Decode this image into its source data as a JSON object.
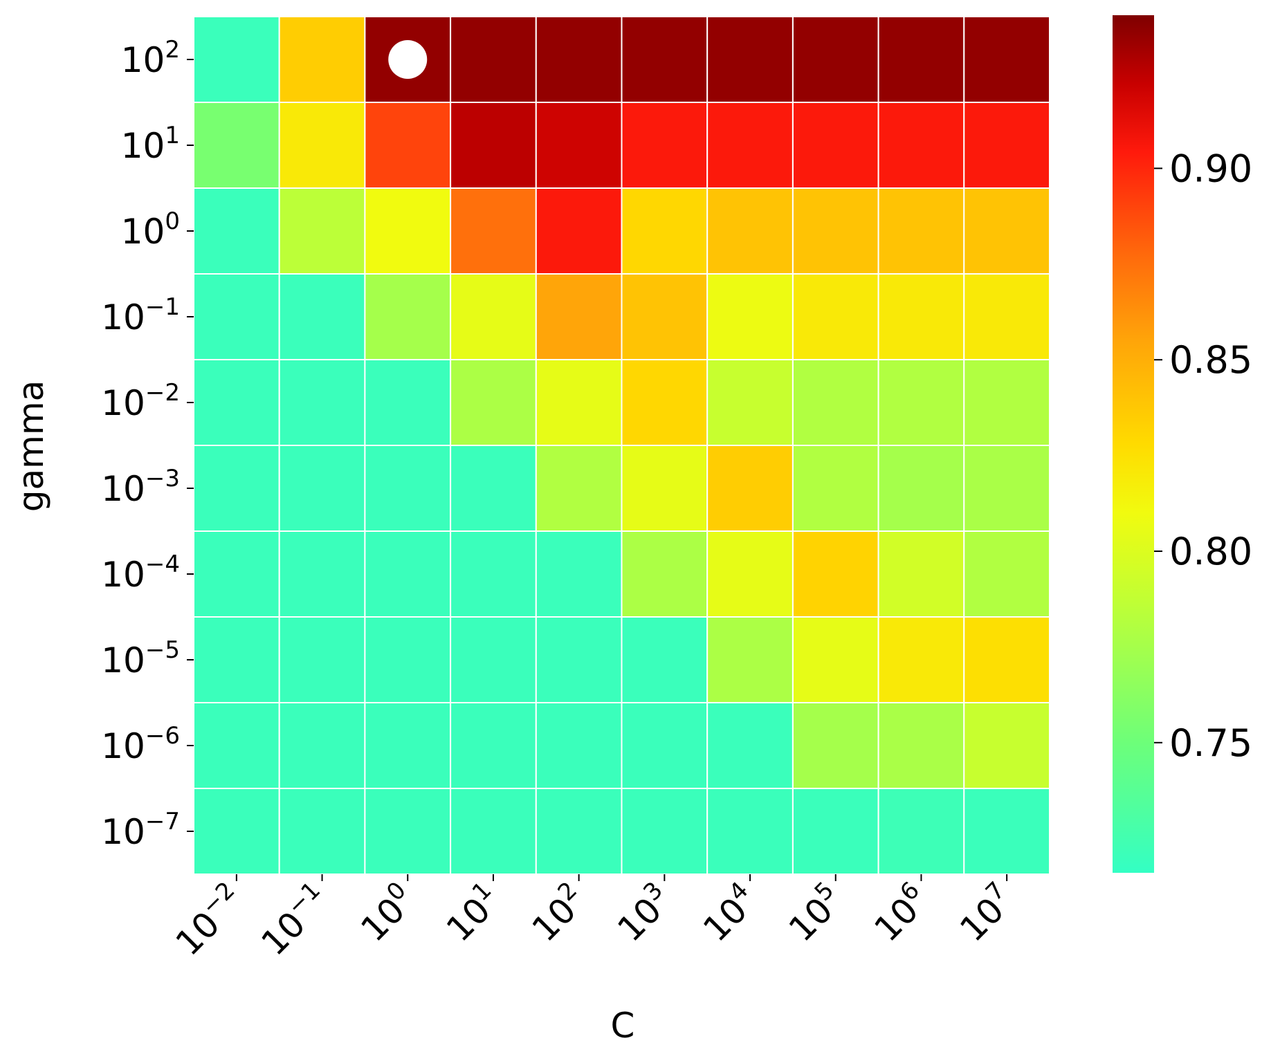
{
  "chart_data": {
    "type": "heatmap",
    "title": "",
    "xlabel": "C",
    "ylabel": "gamma",
    "x_categories": [
      {
        "base": "10",
        "exp": "−2"
      },
      {
        "base": "10",
        "exp": "−1"
      },
      {
        "base": "10",
        "exp": "0"
      },
      {
        "base": "10",
        "exp": "1"
      },
      {
        "base": "10",
        "exp": "2"
      },
      {
        "base": "10",
        "exp": "3"
      },
      {
        "base": "10",
        "exp": "4"
      },
      {
        "base": "10",
        "exp": "5"
      },
      {
        "base": "10",
        "exp": "6"
      },
      {
        "base": "10",
        "exp": "7"
      }
    ],
    "y_categories": [
      {
        "base": "10",
        "exp": "2"
      },
      {
        "base": "10",
        "exp": "1"
      },
      {
        "base": "10",
        "exp": "0"
      },
      {
        "base": "10",
        "exp": "−1"
      },
      {
        "base": "10",
        "exp": "−2"
      },
      {
        "base": "10",
        "exp": "−3"
      },
      {
        "base": "10",
        "exp": "−4"
      },
      {
        "base": "10",
        "exp": "−5"
      },
      {
        "base": "10",
        "exp": "−6"
      },
      {
        "base": "10",
        "exp": "−7"
      }
    ],
    "values": [
      [
        0.72,
        0.835,
        0.935,
        0.935,
        0.935,
        0.935,
        0.935,
        0.935,
        0.935,
        0.935
      ],
      [
        0.755,
        0.82,
        0.89,
        0.925,
        0.92,
        0.905,
        0.905,
        0.905,
        0.905,
        0.905
      ],
      [
        0.72,
        0.785,
        0.81,
        0.875,
        0.905,
        0.83,
        0.84,
        0.84,
        0.84,
        0.84
      ],
      [
        0.72,
        0.72,
        0.775,
        0.805,
        0.855,
        0.84,
        0.808,
        0.82,
        0.82,
        0.82
      ],
      [
        0.72,
        0.72,
        0.72,
        0.778,
        0.805,
        0.83,
        0.79,
        0.78,
        0.78,
        0.78
      ],
      [
        0.72,
        0.72,
        0.72,
        0.72,
        0.78,
        0.805,
        0.835,
        0.78,
        0.775,
        0.777
      ],
      [
        0.72,
        0.72,
        0.72,
        0.72,
        0.72,
        0.778,
        0.805,
        0.832,
        0.795,
        0.78
      ],
      [
        0.72,
        0.72,
        0.72,
        0.72,
        0.72,
        0.72,
        0.778,
        0.805,
        0.82,
        0.826
      ],
      [
        0.72,
        0.72,
        0.72,
        0.72,
        0.72,
        0.72,
        0.72,
        0.775,
        0.777,
        0.79
      ],
      [
        0.72,
        0.72,
        0.72,
        0.72,
        0.72,
        0.72,
        0.72,
        0.72,
        0.722,
        0.72
      ]
    ],
    "colorbar": {
      "vmin": 0.716,
      "vmax": 0.94,
      "ticks": [
        0.75,
        0.8,
        0.85,
        0.9
      ],
      "tick_labels": [
        "0.75",
        "0.80",
        "0.85",
        "0.90"
      ]
    },
    "colormap": [
      {
        "v": 0.0,
        "color": "#33ffc4"
      },
      {
        "v": 0.15,
        "color": "#6cff7a"
      },
      {
        "v": 0.32,
        "color": "#c2ff33"
      },
      {
        "v": 0.42,
        "color": "#f1fb0f"
      },
      {
        "v": 0.5,
        "color": "#ffdb00"
      },
      {
        "v": 0.62,
        "color": "#ffa509"
      },
      {
        "v": 0.72,
        "color": "#ff6a0c"
      },
      {
        "v": 0.84,
        "color": "#ff1a0c"
      },
      {
        "v": 0.92,
        "color": "#c80000"
      },
      {
        "v": 1.0,
        "color": "#7f0000"
      }
    ],
    "marker": {
      "row": 0,
      "col": 2,
      "color": "#ffffff"
    },
    "grid_line_color": "#ffffff",
    "grid": false,
    "legend": "none"
  }
}
